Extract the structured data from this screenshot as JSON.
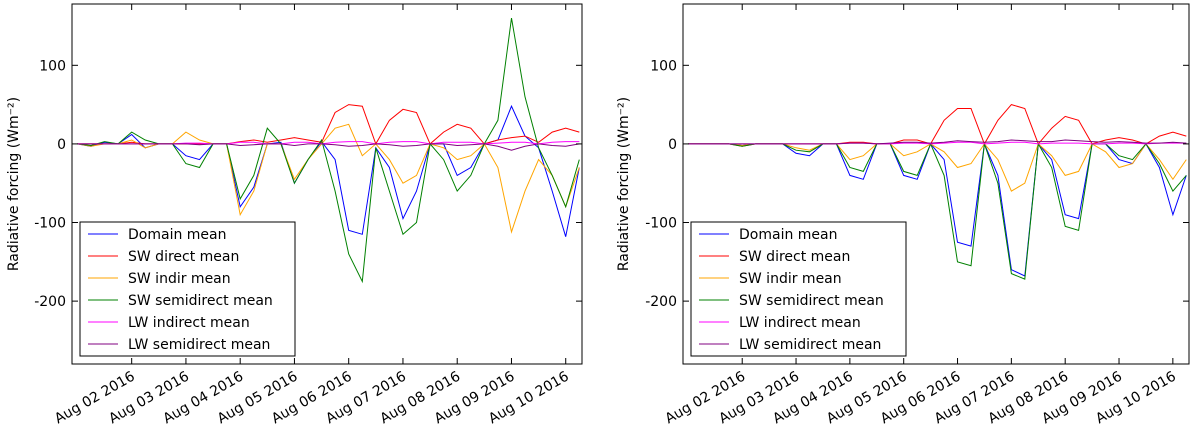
{
  "chart_data": [
    {
      "type": "line",
      "ylabel": "Radiative forcing (Wm⁻²)",
      "legend": "lower left",
      "x": [
        1,
        1.25,
        1.5,
        1.75,
        2,
        2.25,
        2.5,
        2.75,
        3,
        3.25,
        3.5,
        3.75,
        4,
        4.25,
        4.5,
        4.75,
        5,
        5.25,
        5.5,
        5.75,
        6,
        6.25,
        6.5,
        6.75,
        7,
        7.25,
        7.5,
        7.75,
        8,
        8.25,
        8.5,
        8.75,
        9,
        9.25,
        9.5,
        9.75,
        10,
        10.25
      ],
      "xlim": [
        0.9,
        10.3
      ],
      "ylim": [
        -280,
        178
      ],
      "xticks": [
        {
          "value": 2,
          "label": "Aug 02 2016"
        },
        {
          "value": 3,
          "label": "Aug 03 2016"
        },
        {
          "value": 4,
          "label": "Aug 04 2016"
        },
        {
          "value": 5,
          "label": "Aug 05 2016"
        },
        {
          "value": 6,
          "label": "Aug 06 2016"
        },
        {
          "value": 7,
          "label": "Aug 07 2016"
        },
        {
          "value": 8,
          "label": "Aug 08 2016"
        },
        {
          "value": 9,
          "label": "Aug 09 2016"
        },
        {
          "value": 10,
          "label": "Aug 10 2016"
        }
      ],
      "yticks": [
        -200,
        -100,
        0,
        100
      ],
      "series": [
        {
          "name": "Domain mean",
          "color": "#0000ff",
          "values": [
            0,
            -3,
            2,
            0,
            12,
            -5,
            0,
            0,
            -15,
            -20,
            0,
            0,
            -80,
            -55,
            0,
            2,
            -50,
            -20,
            3,
            -20,
            -110,
            -115,
            -5,
            -30,
            -95,
            -60,
            0,
            0,
            -40,
            -30,
            0,
            5,
            48,
            10,
            -5,
            -60,
            -118,
            -30
          ]
        },
        {
          "name": "SW direct mean",
          "color": "#ff0000",
          "values": [
            0,
            0,
            0,
            0,
            2,
            0,
            0,
            0,
            0,
            0,
            0,
            0,
            3,
            5,
            2,
            5,
            8,
            5,
            2,
            40,
            50,
            48,
            0,
            30,
            44,
            40,
            0,
            15,
            25,
            20,
            0,
            5,
            8,
            10,
            2,
            15,
            20,
            15
          ]
        },
        {
          "name": "SW indir mean",
          "color": "#ffa500",
          "values": [
            0,
            -3,
            0,
            0,
            5,
            -5,
            0,
            0,
            15,
            5,
            0,
            0,
            -90,
            -60,
            0,
            0,
            -45,
            -20,
            0,
            20,
            25,
            -15,
            0,
            -20,
            -50,
            -40,
            0,
            -5,
            -20,
            -15,
            0,
            -30,
            -112,
            -60,
            -20,
            -40,
            -80,
            -30
          ]
        },
        {
          "name": "SW semidirect mean",
          "color": "#008000",
          "values": [
            0,
            -2,
            3,
            0,
            15,
            5,
            0,
            0,
            -25,
            -30,
            0,
            0,
            -70,
            -40,
            20,
            0,
            -50,
            -20,
            5,
            -60,
            -140,
            -175,
            -5,
            -60,
            -115,
            -100,
            0,
            -20,
            -60,
            -40,
            0,
            30,
            160,
            60,
            -5,
            -40,
            -80,
            -20
          ]
        },
        {
          "name": "LW indirect mean",
          "color": "#ff00ff",
          "values": [
            0,
            0,
            0,
            0,
            0,
            0,
            0,
            0,
            1,
            1,
            0,
            0,
            2,
            2,
            0,
            0,
            2,
            2,
            0,
            2,
            3,
            3,
            0,
            2,
            3,
            3,
            0,
            2,
            2,
            2,
            0,
            1,
            2,
            2,
            0,
            2,
            3,
            3
          ]
        },
        {
          "name": "LW semidirect mean",
          "color": "#800080",
          "values": [
            0,
            0,
            0,
            0,
            0,
            0,
            0,
            0,
            0,
            -1,
            0,
            0,
            -2,
            -1,
            0,
            0,
            -2,
            0,
            0,
            -1,
            -3,
            -2,
            0,
            -1,
            -3,
            -2,
            0,
            0,
            -2,
            -1,
            0,
            -3,
            -8,
            -3,
            0,
            -2,
            -3,
            0
          ]
        }
      ]
    },
    {
      "type": "line",
      "ylabel": "Radiative forcing (Wm⁻²)",
      "legend": "lower left",
      "x": [
        1,
        1.25,
        1.5,
        1.75,
        2,
        2.25,
        2.5,
        2.75,
        3,
        3.25,
        3.5,
        3.75,
        4,
        4.25,
        4.5,
        4.75,
        5,
        5.25,
        5.5,
        5.75,
        6,
        6.25,
        6.5,
        6.75,
        7,
        7.25,
        7.5,
        7.75,
        8,
        8.25,
        8.5,
        8.75,
        9,
        9.25,
        9.5,
        9.75,
        10,
        10.25
      ],
      "xlim": [
        0.9,
        10.3
      ],
      "ylim": [
        -280,
        178
      ],
      "xticks": [
        {
          "value": 2,
          "label": "Aug 02 2016"
        },
        {
          "value": 3,
          "label": "Aug 03 2016"
        },
        {
          "value": 4,
          "label": "Aug 04 2016"
        },
        {
          "value": 5,
          "label": "Aug 05 2016"
        },
        {
          "value": 6,
          "label": "Aug 06 2016"
        },
        {
          "value": 7,
          "label": "Aug 07 2016"
        },
        {
          "value": 8,
          "label": "Aug 08 2016"
        },
        {
          "value": 9,
          "label": "Aug 09 2016"
        },
        {
          "value": 10,
          "label": "Aug 10 2016"
        }
      ],
      "yticks": [
        -200,
        -100,
        0,
        100
      ],
      "series": [
        {
          "name": "Domain mean",
          "color": "#0000ff",
          "values": [
            0,
            0,
            0,
            0,
            -2,
            0,
            0,
            0,
            -12,
            -15,
            0,
            0,
            -40,
            -45,
            0,
            0,
            -40,
            -45,
            0,
            -20,
            -125,
            -130,
            0,
            -40,
            -160,
            -168,
            0,
            -20,
            -90,
            -95,
            0,
            0,
            -20,
            -25,
            0,
            -30,
            -90,
            -40
          ]
        },
        {
          "name": "SW direct mean",
          "color": "#ff0000",
          "values": [
            0,
            0,
            0,
            0,
            -3,
            0,
            0,
            0,
            0,
            0,
            0,
            0,
            2,
            2,
            0,
            0,
            5,
            5,
            0,
            30,
            45,
            45,
            0,
            30,
            50,
            45,
            0,
            20,
            35,
            30,
            0,
            5,
            8,
            5,
            0,
            10,
            15,
            10
          ]
        },
        {
          "name": "SW indir mean",
          "color": "#ffa500",
          "values": [
            0,
            0,
            0,
            0,
            -2,
            0,
            0,
            0,
            -5,
            -8,
            0,
            0,
            -20,
            -15,
            0,
            0,
            -15,
            -10,
            0,
            -10,
            -30,
            -25,
            0,
            -20,
            -60,
            -50,
            0,
            -15,
            -40,
            -35,
            0,
            -10,
            -30,
            -25,
            0,
            -20,
            -45,
            -20
          ]
        },
        {
          "name": "SW semidirect mean",
          "color": "#008000",
          "values": [
            0,
            0,
            0,
            0,
            -3,
            0,
            0,
            0,
            -8,
            -10,
            0,
            0,
            -30,
            -35,
            0,
            0,
            -35,
            -40,
            0,
            -40,
            -150,
            -155,
            0,
            -50,
            -165,
            -172,
            0,
            -30,
            -105,
            -110,
            0,
            0,
            -15,
            -20,
            0,
            -25,
            -60,
            -40
          ]
        },
        {
          "name": "LW indirect mean",
          "color": "#ff00ff",
          "values": [
            0,
            0,
            0,
            0,
            0,
            0,
            0,
            0,
            0,
            0,
            0,
            0,
            1,
            1,
            0,
            0,
            1,
            1,
            0,
            1,
            2,
            2,
            0,
            1,
            2,
            2,
            0,
            1,
            1,
            1,
            0,
            0,
            1,
            1,
            0,
            1,
            1,
            1
          ]
        },
        {
          "name": "LW semidirect mean",
          "color": "#800080",
          "values": [
            0,
            0,
            0,
            0,
            0,
            0,
            0,
            0,
            0,
            0,
            0,
            0,
            1,
            1,
            0,
            1,
            2,
            2,
            1,
            2,
            4,
            3,
            2,
            3,
            5,
            4,
            3,
            3,
            5,
            4,
            3,
            2,
            3,
            2,
            1,
            1,
            2,
            1
          ]
        }
      ]
    }
  ]
}
